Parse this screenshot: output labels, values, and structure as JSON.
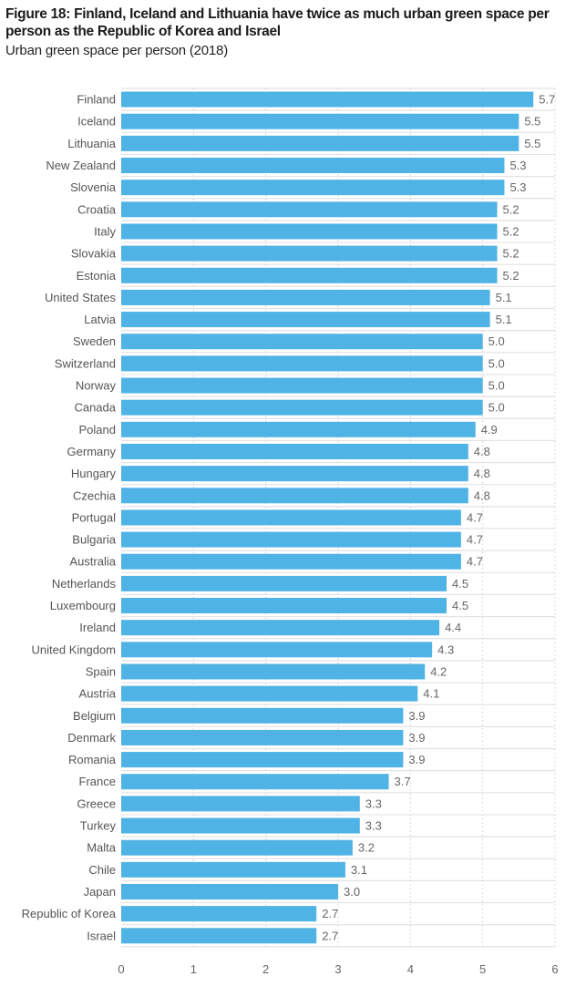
{
  "chart_data": {
    "type": "bar",
    "orientation": "horizontal",
    "title": "Figure 18: Finland, Iceland and Lithuania have twice as much urban green space per person as the Republic of Korea and Israel",
    "subtitle": "Urban green space per person (2018)",
    "xlabel": "",
    "ylabel": "",
    "xlim": [
      0,
      6
    ],
    "xticks": [
      "0",
      "1",
      "2",
      "3",
      "4",
      "5",
      "6"
    ],
    "grid": true,
    "legend": "none",
    "bar_color": "#4fb3e6",
    "categories": [
      "Finland",
      "Iceland",
      "Lithuania",
      "New Zealand",
      "Slovenia",
      "Croatia",
      "Italy",
      "Slovakia",
      "Estonia",
      "United States",
      "Latvia",
      "Sweden",
      "Switzerland",
      "Norway",
      "Canada",
      "Poland",
      "Germany",
      "Hungary",
      "Czechia",
      "Portugal",
      "Bulgaria",
      "Australia",
      "Netherlands",
      "Luxembourg",
      "Ireland",
      "United Kingdom",
      "Spain",
      "Austria",
      "Belgium",
      "Denmark",
      "Romania",
      "France",
      "Greece",
      "Turkey",
      "Malta",
      "Chile",
      "Japan",
      "Republic of Korea",
      "Israel"
    ],
    "values": [
      5.7,
      5.5,
      5.5,
      5.3,
      5.3,
      5.2,
      5.2,
      5.2,
      5.2,
      5.1,
      5.1,
      5.0,
      5.0,
      5.0,
      5.0,
      4.9,
      4.8,
      4.8,
      4.8,
      4.7,
      4.7,
      4.7,
      4.5,
      4.5,
      4.4,
      4.3,
      4.2,
      4.1,
      3.9,
      3.9,
      3.9,
      3.7,
      3.3,
      3.3,
      3.2,
      3.1,
      3.0,
      2.7,
      2.7
    ],
    "data_labels": [
      "5.7",
      "5.5",
      "5.5",
      "5.3",
      "5.3",
      "5.2",
      "5.2",
      "5.2",
      "5.2",
      "5.1",
      "5.1",
      "5.0",
      "5.0",
      "5.0",
      "5.0",
      "4.9",
      "4.8",
      "4.8",
      "4.8",
      "4.7",
      "4.7",
      "4.7",
      "4.5",
      "4.5",
      "4.4",
      "4.3",
      "4.2",
      "4.1",
      "3.9",
      "3.9",
      "3.9",
      "3.7",
      "3.3",
      "3.3",
      "3.2",
      "3.1",
      "3.0",
      "2.7",
      "2.7"
    ]
  }
}
